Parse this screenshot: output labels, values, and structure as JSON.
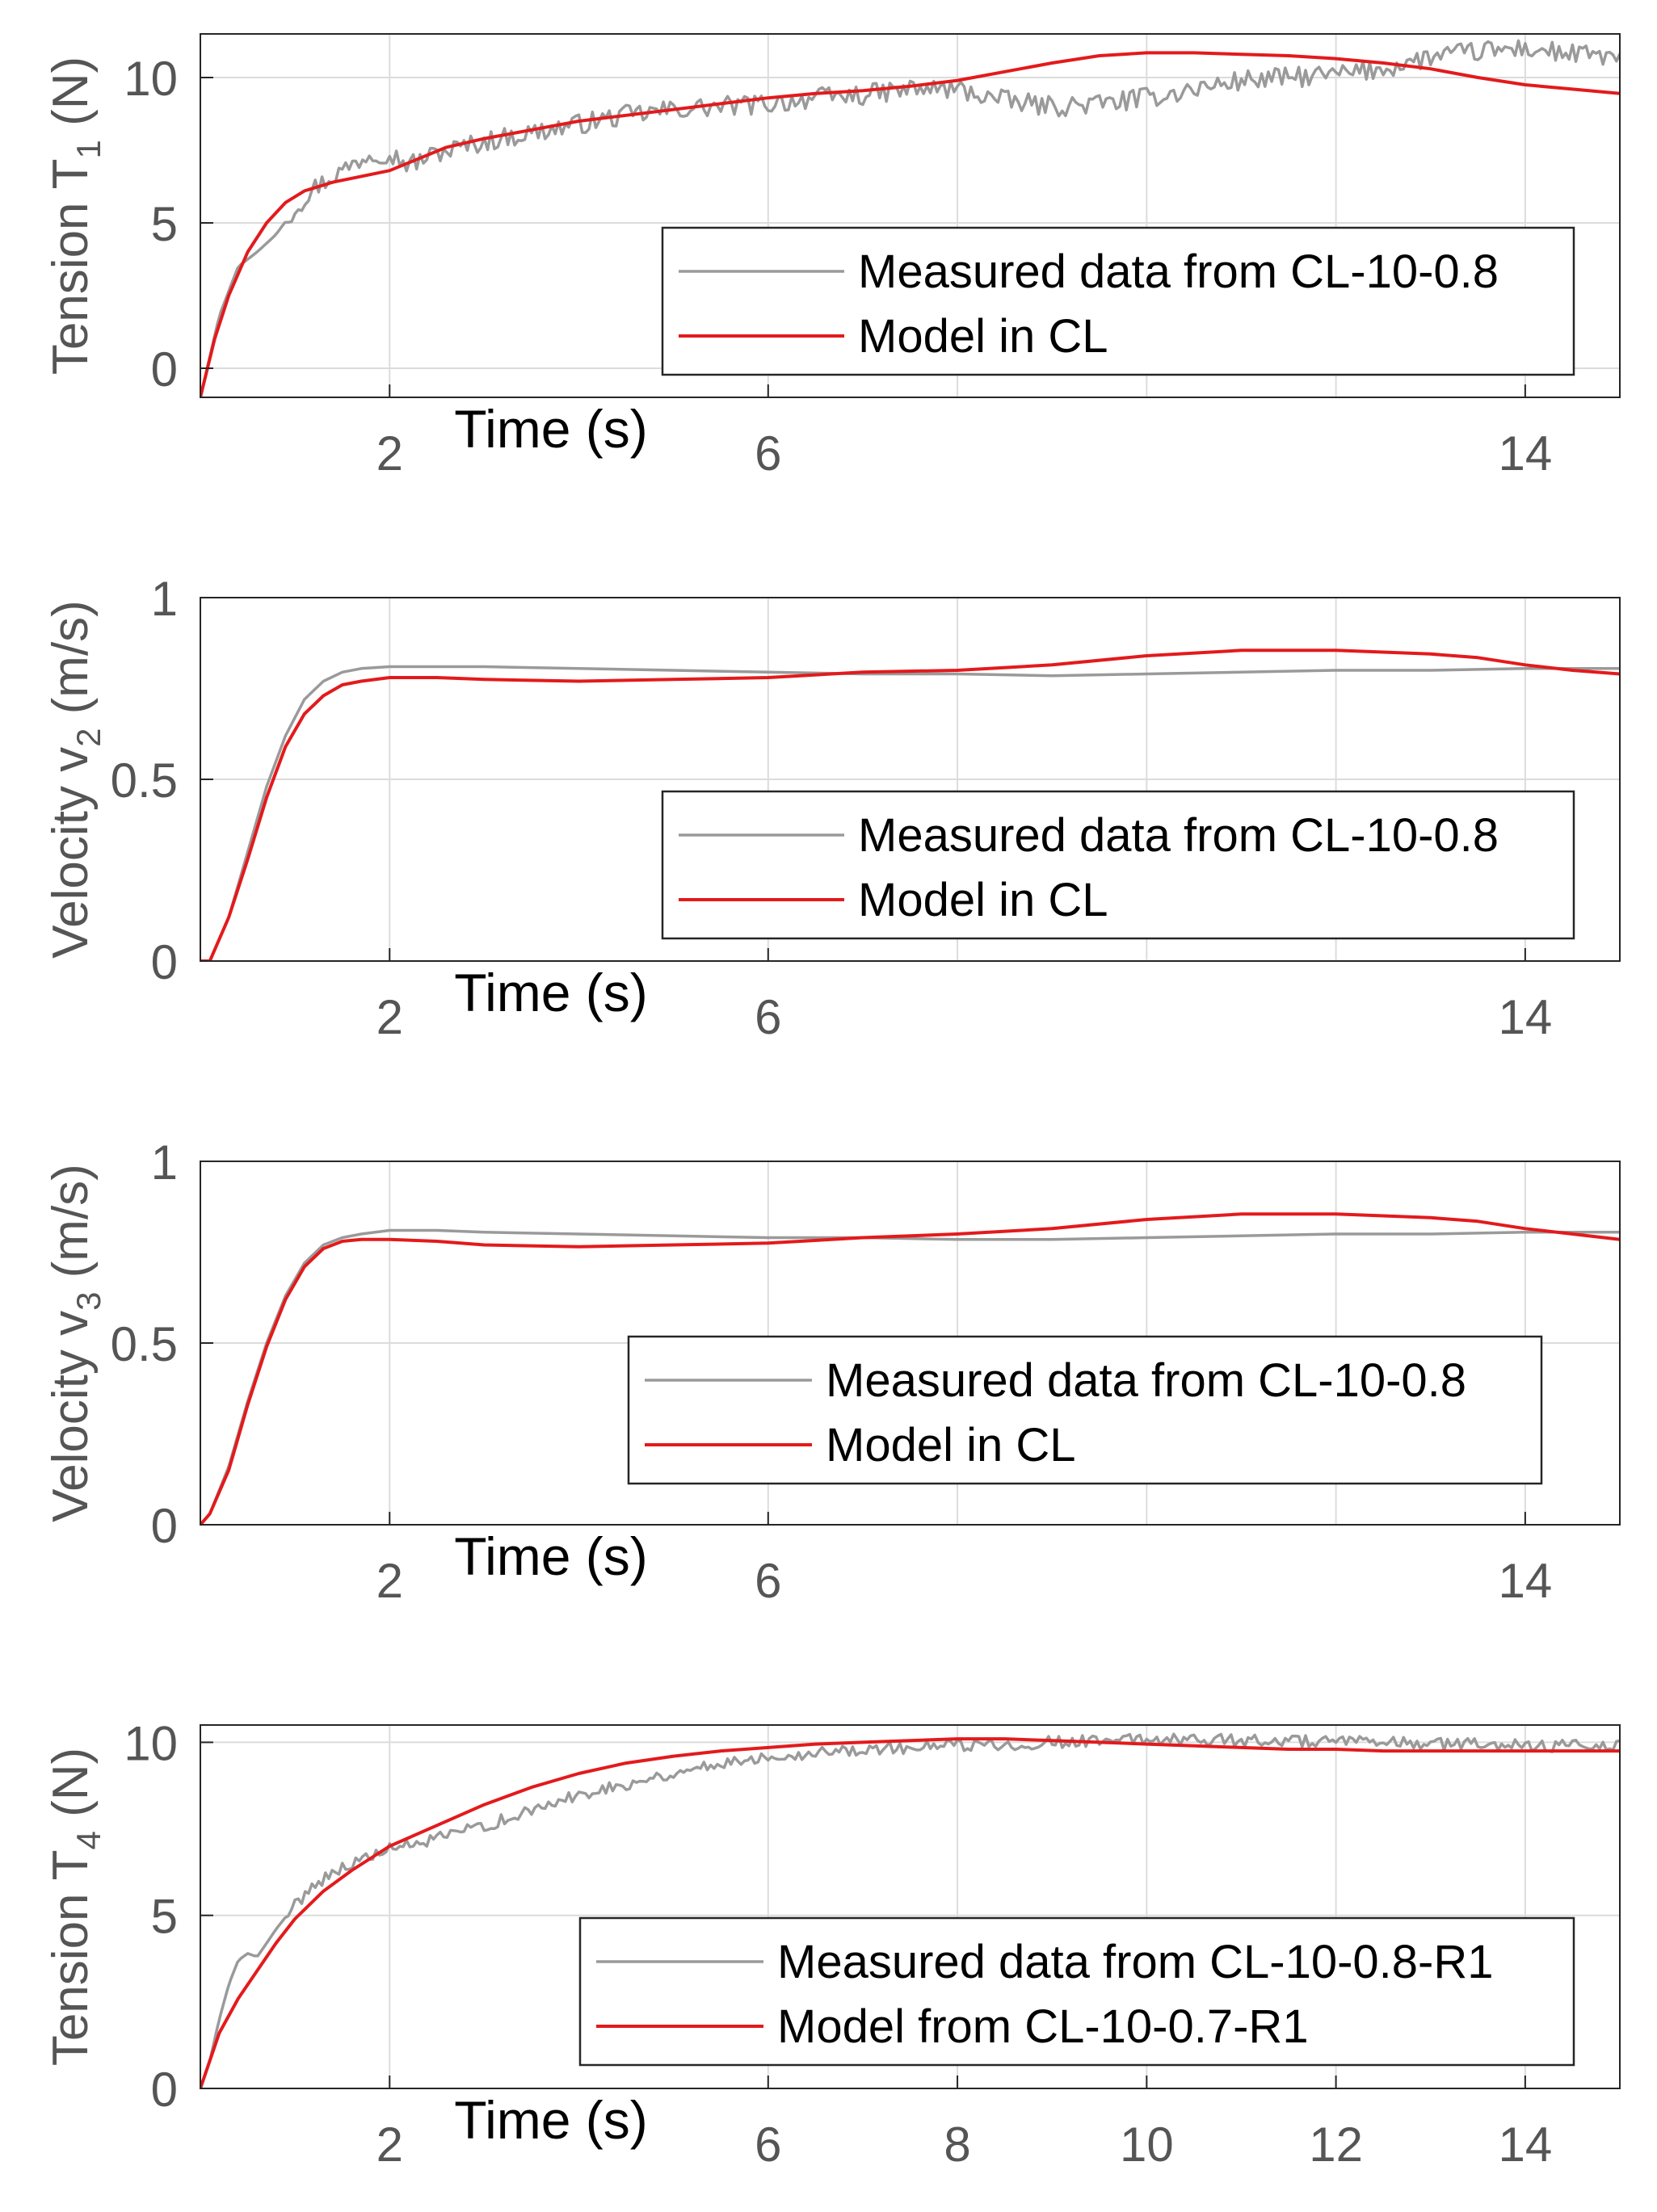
{
  "figure": {
    "colors": {
      "measured": "#9a9a9a",
      "model": "#e31a1c",
      "axis": "#262626",
      "grid": "#dcdcdc",
      "tick_text": "#555555",
      "label_text": "#000000"
    },
    "xlabel": "Time (s)"
  },
  "chart_data": [
    {
      "type": "line",
      "title": "",
      "xlabel": "Time (s)",
      "ylabel": "Tension T",
      "ylabel_sub": "1",
      "ylabel_unit": "(N)",
      "xlim": [
        0,
        15
      ],
      "ylim": [
        -1,
        11.5
      ],
      "xticks": [
        2,
        6,
        14
      ],
      "yticks": [
        0,
        5,
        10
      ],
      "grid_x": [
        2,
        6,
        8,
        10,
        12,
        14
      ],
      "legend_position": "center-right",
      "noise": 0.35,
      "series": [
        {
          "name": "Measured data from CL-10-0.8",
          "role": "measured",
          "x": [
            0,
            0.2,
            0.4,
            0.6,
            0.8,
            1.0,
            1.2,
            1.5,
            1.8,
            2.0,
            2.2,
            2.5,
            3.0,
            3.5,
            4.0,
            4.5,
            5.0,
            5.5,
            6.0,
            6.5,
            7.0,
            7.5,
            8.0,
            8.5,
            9.0,
            9.5,
            10.0,
            10.5,
            11.0,
            11.5,
            12.0,
            12.5,
            13.0,
            13.5,
            14.0,
            14.5,
            15.0
          ],
          "y": [
            -1,
            1.8,
            3.5,
            4.0,
            4.6,
            5.5,
            6.2,
            6.8,
            7.4,
            7.4,
            7.0,
            7.4,
            7.8,
            8.1,
            8.4,
            8.7,
            8.9,
            9.0,
            9.1,
            9.3,
            9.4,
            9.6,
            9.6,
            9.2,
            9.0,
            9.1,
            9.3,
            9.6,
            9.9,
            10.0,
            10.1,
            10.3,
            10.7,
            10.9,
            11.0,
            10.8,
            10.7
          ]
        },
        {
          "name": "Model in CL",
          "role": "model",
          "x": [
            0,
            0.15,
            0.3,
            0.5,
            0.7,
            0.9,
            1.1,
            1.4,
            1.7,
            2.0,
            2.3,
            2.6,
            3.0,
            3.5,
            4.0,
            4.5,
            5.0,
            5.5,
            6.0,
            6.5,
            7.0,
            7.5,
            8.0,
            8.5,
            9.0,
            9.5,
            10.0,
            10.5,
            11.0,
            11.5,
            12.0,
            12.5,
            13.0,
            13.5,
            14.0,
            14.5,
            15.0
          ],
          "y": [
            -1,
            1.0,
            2.5,
            4.0,
            5.0,
            5.7,
            6.1,
            6.4,
            6.6,
            6.8,
            7.2,
            7.6,
            7.9,
            8.2,
            8.5,
            8.7,
            8.9,
            9.1,
            9.3,
            9.45,
            9.55,
            9.7,
            9.9,
            10.2,
            10.5,
            10.75,
            10.85,
            10.85,
            10.8,
            10.75,
            10.65,
            10.5,
            10.3,
            10.0,
            9.75,
            9.6,
            9.45
          ]
        }
      ]
    },
    {
      "type": "line",
      "title": "",
      "xlabel": "Time (s)",
      "ylabel": "Velocity v",
      "ylabel_sub": "2",
      "ylabel_unit": "(m/s)",
      "xlim": [
        0,
        15
      ],
      "ylim": [
        0,
        1
      ],
      "xticks": [
        2,
        6,
        14
      ],
      "yticks": [
        0,
        0.5,
        1
      ],
      "grid_x": [
        2,
        6,
        8,
        10,
        12,
        14
      ],
      "legend_position": "center-right",
      "noise": 0,
      "series": [
        {
          "name": "Measured data from CL-10-0.8",
          "role": "measured",
          "x": [
            0,
            0.1,
            0.3,
            0.5,
            0.7,
            0.9,
            1.1,
            1.3,
            1.5,
            1.7,
            2.0,
            2.5,
            3.0,
            4.0,
            5.0,
            6.0,
            7.0,
            8.0,
            9.0,
            10.0,
            11.0,
            12.0,
            13.0,
            14.0,
            15.0
          ],
          "y": [
            0,
            0.0,
            0.12,
            0.3,
            0.48,
            0.62,
            0.72,
            0.77,
            0.795,
            0.805,
            0.81,
            0.81,
            0.81,
            0.805,
            0.8,
            0.795,
            0.79,
            0.79,
            0.785,
            0.79,
            0.795,
            0.8,
            0.8,
            0.805,
            0.805
          ]
        },
        {
          "name": "Model in CL",
          "role": "model",
          "x": [
            0,
            0.1,
            0.3,
            0.5,
            0.7,
            0.9,
            1.1,
            1.3,
            1.5,
            1.7,
            2.0,
            2.5,
            3.0,
            4.0,
            5.0,
            6.0,
            7.0,
            8.0,
            9.0,
            10.0,
            11.0,
            12.0,
            13.0,
            13.5,
            14.0,
            14.5,
            15.0
          ],
          "y": [
            0,
            0.0,
            0.12,
            0.28,
            0.45,
            0.59,
            0.68,
            0.73,
            0.76,
            0.77,
            0.78,
            0.78,
            0.775,
            0.77,
            0.775,
            0.78,
            0.795,
            0.8,
            0.815,
            0.84,
            0.855,
            0.855,
            0.845,
            0.835,
            0.815,
            0.8,
            0.79
          ]
        }
      ]
    },
    {
      "type": "line",
      "title": "",
      "xlabel": "Time (s)",
      "ylabel": "Velocity v",
      "ylabel_sub": "3",
      "ylabel_unit": "(m/s)",
      "xlim": [
        0,
        15
      ],
      "ylim": [
        0,
        1
      ],
      "xticks": [
        2,
        6,
        14
      ],
      "yticks": [
        0,
        0.5,
        1
      ],
      "grid_x": [
        2,
        6,
        8,
        10,
        12,
        14
      ],
      "legend_position": "center-right",
      "noise": 0,
      "series": [
        {
          "name": "Measured data from CL-10-0.8",
          "role": "measured",
          "x": [
            0,
            0.1,
            0.3,
            0.5,
            0.7,
            0.9,
            1.1,
            1.3,
            1.5,
            1.7,
            2.0,
            2.5,
            3.0,
            4.0,
            5.0,
            6.0,
            7.0,
            8.0,
            9.0,
            10.0,
            11.0,
            12.0,
            13.0,
            14.0,
            15.0
          ],
          "y": [
            0,
            0.03,
            0.16,
            0.34,
            0.5,
            0.63,
            0.72,
            0.77,
            0.79,
            0.8,
            0.81,
            0.81,
            0.805,
            0.8,
            0.795,
            0.79,
            0.79,
            0.785,
            0.785,
            0.79,
            0.795,
            0.8,
            0.8,
            0.805,
            0.805
          ]
        },
        {
          "name": "Model in CL",
          "role": "model",
          "x": [
            0,
            0.1,
            0.3,
            0.5,
            0.7,
            0.9,
            1.1,
            1.3,
            1.5,
            1.7,
            2.0,
            2.5,
            3.0,
            4.0,
            5.0,
            6.0,
            7.0,
            8.0,
            9.0,
            10.0,
            11.0,
            12.0,
            13.0,
            13.5,
            14.0,
            14.5,
            15.0
          ],
          "y": [
            0,
            0.03,
            0.15,
            0.33,
            0.49,
            0.62,
            0.71,
            0.76,
            0.78,
            0.785,
            0.785,
            0.78,
            0.77,
            0.765,
            0.77,
            0.775,
            0.79,
            0.8,
            0.815,
            0.84,
            0.855,
            0.855,
            0.845,
            0.835,
            0.815,
            0.8,
            0.785
          ]
        }
      ]
    },
    {
      "type": "line",
      "title": "",
      "xlabel": "Time (s)",
      "ylabel": "Tension T",
      "ylabel_sub": "4",
      "ylabel_unit": "(N)",
      "xlim": [
        0,
        15
      ],
      "ylim": [
        0,
        10.5
      ],
      "xticks": [
        2,
        6,
        8,
        10,
        12,
        14
      ],
      "yticks": [
        0,
        5,
        10
      ],
      "grid_x": [
        2,
        6,
        8,
        10,
        12,
        14
      ],
      "legend_position": "center-right",
      "noise": 0.18,
      "series": [
        {
          "name": "Measured data from CL-10-0.8-R1",
          "role": "measured",
          "x": [
            0,
            0.1,
            0.2,
            0.3,
            0.4,
            0.5,
            0.6,
            0.8,
            1.0,
            1.2,
            1.5,
            1.8,
            2.0,
            2.5,
            3.0,
            3.5,
            4.0,
            4.5,
            5.0,
            5.5,
            6.0,
            6.5,
            7.0,
            7.5,
            8.0,
            8.5,
            9.0,
            9.5,
            10.0,
            10.5,
            11.0,
            11.5,
            12.0,
            12.5,
            13.0,
            13.5,
            14.0,
            14.5,
            15.0
          ],
          "y": [
            0,
            0.8,
            2.0,
            3.0,
            3.7,
            3.9,
            3.8,
            4.6,
            5.3,
            5.9,
            6.4,
            6.7,
            6.9,
            7.2,
            7.6,
            8.0,
            8.5,
            8.8,
            9.1,
            9.4,
            9.6,
            9.7,
            9.8,
            9.85,
            9.9,
            9.95,
            10.0,
            10.05,
            10.1,
            10.1,
            10.05,
            10.05,
            10.0,
            10.0,
            9.95,
            9.95,
            9.9,
            9.9,
            9.95
          ]
        },
        {
          "name": "Model from CL-10-0.7-R1",
          "role": "model",
          "x": [
            0,
            0.1,
            0.2,
            0.4,
            0.6,
            0.8,
            1.0,
            1.3,
            1.6,
            2.0,
            2.5,
            3.0,
            3.5,
            4.0,
            4.5,
            5.0,
            5.5,
            6.0,
            6.5,
            7.0,
            7.5,
            8.0,
            8.5,
            9.0,
            9.5,
            10.0,
            10.5,
            11.0,
            11.5,
            12.0,
            12.5,
            13.0,
            13.5,
            14.0,
            14.5,
            15.0
          ],
          "y": [
            0,
            0.8,
            1.6,
            2.6,
            3.4,
            4.2,
            4.9,
            5.7,
            6.3,
            7.0,
            7.6,
            8.2,
            8.7,
            9.1,
            9.4,
            9.6,
            9.75,
            9.85,
            9.95,
            10.0,
            10.05,
            10.1,
            10.1,
            10.05,
            10.0,
            9.95,
            9.9,
            9.85,
            9.8,
            9.8,
            9.75,
            9.75,
            9.75,
            9.75,
            9.75,
            9.75
          ]
        }
      ]
    }
  ]
}
